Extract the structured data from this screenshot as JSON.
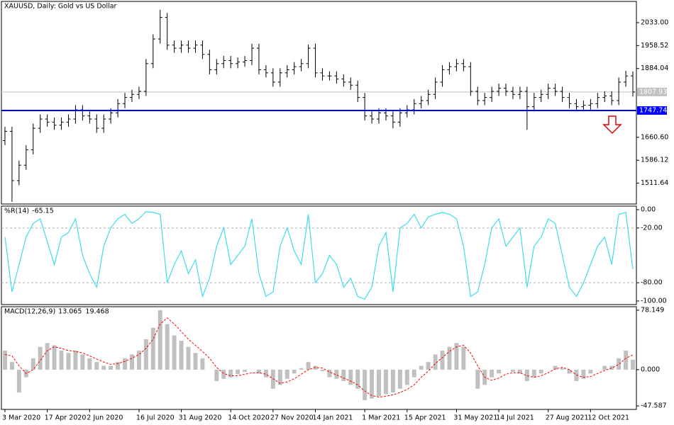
{
  "chart_data": [
    {
      "type": "candlestick",
      "title": "XAUUSD, Daily:  Gold vs US Dollar",
      "categories": [
        "3 Mar 2020",
        null,
        null,
        null,
        null,
        null,
        "17 Apr 2020",
        null,
        null,
        null,
        null,
        null,
        "2 Jun 2020",
        null,
        null,
        null,
        null,
        null,
        null,
        "16 Jul 2020",
        null,
        null,
        null,
        null,
        null,
        "31 Aug 2020",
        null,
        null,
        null,
        null,
        null,
        null,
        "14 Oct 2020",
        null,
        null,
        null,
        null,
        null,
        "27 Nov 2020",
        null,
        null,
        null,
        null,
        null,
        "14 Jan 2021",
        null,
        null,
        null,
        null,
        null,
        null,
        "1 Mar 2021",
        null,
        null,
        null,
        null,
        null,
        "15 Apr 2021",
        null,
        null,
        null,
        null,
        null,
        null,
        "31 May 2021",
        null,
        null,
        null,
        null,
        null,
        "14 Jul 2021",
        null,
        null,
        null,
        null,
        null,
        null,
        "27 Aug 2021",
        null,
        null,
        null,
        null,
        null,
        "12 Oct 2021",
        null,
        null,
        null,
        null,
        null,
        null
      ],
      "open": [
        1650,
        1680,
        1520,
        1570,
        1620,
        1690,
        1720,
        1710,
        1700,
        1710,
        1720,
        1750,
        1730,
        1720,
        1690,
        1720,
        1740,
        1770,
        1790,
        1800,
        1810,
        1900,
        1980,
        2050,
        1960,
        1950,
        1960,
        1950,
        1960,
        1930,
        1880,
        1900,
        1910,
        1900,
        1905,
        1910,
        1950,
        1880,
        1870,
        1840,
        1870,
        1880,
        1890,
        1900,
        1950,
        1870,
        1860,
        1860,
        1850,
        1840,
        1830,
        1790,
        1730,
        1720,
        1740,
        1730,
        1710,
        1740,
        1750,
        1770,
        1780,
        1800,
        1840,
        1880,
        1890,
        1900,
        1890,
        1810,
        1780,
        1790,
        1810,
        1820,
        1810,
        1800,
        1810,
        1760,
        1790,
        1800,
        1820,
        1810,
        1790,
        1770,
        1760,
        1765,
        1770,
        1790,
        1795,
        1780,
        1840,
        1860
      ],
      "high": [
        1695,
        1695,
        1585,
        1635,
        1705,
        1735,
        1735,
        1725,
        1725,
        1735,
        1765,
        1765,
        1745,
        1735,
        1735,
        1755,
        1785,
        1805,
        1815,
        1825,
        1915,
        1995,
        2075,
        2065,
        1975,
        1975,
        1975,
        1975,
        1975,
        1945,
        1915,
        1925,
        1925,
        1920,
        1925,
        1965,
        1965,
        1895,
        1885,
        1885,
        1895,
        1905,
        1915,
        1962,
        1965,
        1885,
        1875,
        1875,
        1865,
        1855,
        1845,
        1805,
        1745,
        1755,
        1755,
        1745,
        1755,
        1765,
        1785,
        1795,
        1815,
        1855,
        1895,
        1905,
        1915,
        1915,
        1905,
        1825,
        1805,
        1825,
        1835,
        1835,
        1825,
        1825,
        1825,
        1805,
        1815,
        1835,
        1835,
        1825,
        1805,
        1785,
        1780,
        1785,
        1805,
        1810,
        1810,
        1855,
        1877,
        1875
      ],
      "low": [
        1635,
        1451,
        1505,
        1555,
        1605,
        1675,
        1695,
        1685,
        1685,
        1695,
        1705,
        1715,
        1705,
        1675,
        1675,
        1705,
        1725,
        1755,
        1775,
        1785,
        1795,
        1885,
        1965,
        1945,
        1935,
        1935,
        1935,
        1935,
        1915,
        1865,
        1865,
        1885,
        1885,
        1885,
        1890,
        1895,
        1865,
        1855,
        1825,
        1825,
        1855,
        1865,
        1875,
        1885,
        1855,
        1845,
        1845,
        1835,
        1825,
        1815,
        1775,
        1715,
        1705,
        1705,
        1715,
        1690,
        1695,
        1725,
        1735,
        1755,
        1765,
        1785,
        1825,
        1865,
        1875,
        1875,
        1795,
        1765,
        1765,
        1775,
        1795,
        1795,
        1785,
        1785,
        1685,
        1745,
        1775,
        1785,
        1795,
        1775,
        1755,
        1745,
        1745,
        1750,
        1755,
        1775,
        1765,
        1765,
        1825,
        1793
      ],
      "close": [
        1680,
        1520,
        1570,
        1620,
        1690,
        1720,
        1710,
        1700,
        1710,
        1720,
        1750,
        1730,
        1720,
        1690,
        1720,
        1740,
        1770,
        1790,
        1800,
        1810,
        1900,
        1980,
        2050,
        1960,
        1950,
        1960,
        1950,
        1960,
        1930,
        1880,
        1900,
        1910,
        1900,
        1905,
        1910,
        1950,
        1880,
        1870,
        1840,
        1870,
        1880,
        1890,
        1900,
        1950,
        1870,
        1860,
        1860,
        1850,
        1840,
        1830,
        1790,
        1730,
        1720,
        1740,
        1730,
        1710,
        1740,
        1750,
        1770,
        1780,
        1800,
        1840,
        1880,
        1890,
        1900,
        1890,
        1810,
        1780,
        1790,
        1810,
        1820,
        1810,
        1800,
        1810,
        1760,
        1790,
        1800,
        1820,
        1810,
        1790,
        1770,
        1760,
        1765,
        1770,
        1790,
        1795,
        1780,
        1840,
        1860,
        1807.93
      ],
      "color": "#000000",
      "last_price_color": "#c0c0c0",
      "hline": {
        "value": 1747.74,
        "color": "#0000ff"
      },
      "ylim": [
        1444,
        2102
      ],
      "yticks": [
        {
          "value": 2033,
          "label": "2033.00"
        },
        1958.52,
        1884.04,
        {
          "value": 1660.6,
          "label": "1660.60"
        },
        1586.12,
        1511.64
      ]
    },
    {
      "type": "line",
      "title": "%R(14)",
      "values": [
        -30,
        -90,
        -60,
        -30,
        -15,
        -10,
        -35,
        -60,
        -30,
        -25,
        -10,
        -50,
        -70,
        -85,
        -40,
        -20,
        -10,
        -5,
        -15,
        -10,
        -2,
        -3,
        -5,
        -80,
        -60,
        -45,
        -70,
        -55,
        -95,
        -75,
        -40,
        -20,
        -60,
        -50,
        -40,
        -10,
        -70,
        -95,
        -90,
        -40,
        -20,
        -45,
        -60,
        -5,
        -80,
        -70,
        -50,
        -60,
        -85,
        -75,
        -95,
        -98,
        -85,
        -40,
        -25,
        -90,
        -20,
        -15,
        -5,
        -20,
        -8,
        -5,
        -3,
        -5,
        -10,
        -40,
        -95,
        -90,
        -60,
        -20,
        -10,
        -40,
        -30,
        -20,
        -85,
        -40,
        -30,
        -10,
        -15,
        -50,
        -85,
        -95,
        -80,
        -60,
        -40,
        -30,
        -60,
        -5,
        -3,
        -65.15
      ],
      "color": "#3fdcec",
      "levels": [
        -20,
        -80
      ],
      "ylim": [
        -103.9,
        3.9
      ],
      "yticks": [
        {
          "value": 0,
          "label": "0.00"
        },
        {
          "value": -20,
          "label": "-20.00"
        },
        {
          "value": -80,
          "label": "-80.00"
        },
        {
          "value": -100,
          "label": "-100.00"
        }
      ]
    },
    {
      "type": "macd",
      "title": "MACD(12,26,9)",
      "series": [
        {
          "color": "#c0c0c0",
          "style": "histogram",
          "values": [
            25,
            10,
            -30,
            -10,
            15,
            30,
            35,
            32,
            25,
            22,
            25,
            20,
            15,
            10,
            5,
            5,
            10,
            15,
            20,
            25,
            40,
            55,
            78,
            60,
            45,
            38,
            30,
            22,
            15,
            0,
            -15,
            -12,
            -10,
            -6,
            -3,
            0,
            -5,
            -10,
            -25,
            -20,
            -12,
            -5,
            2,
            10,
            5,
            -2,
            -10,
            -12,
            -15,
            -20,
            -25,
            -40,
            -38,
            -35,
            -32,
            -30,
            -25,
            -20,
            -10,
            5,
            10,
            20,
            25,
            30,
            35,
            30,
            0,
            -25,
            -20,
            -10,
            -5,
            0,
            -3,
            -5,
            -15,
            -10,
            -5,
            0,
            5,
            2,
            -5,
            -15,
            -12,
            -5,
            0,
            5,
            5,
            15,
            25,
            13.065
          ]
        },
        {
          "color": "#ff0000",
          "style": "dashed",
          "values": [
            20,
            18,
            5,
            -5,
            0,
            12,
            25,
            30,
            28,
            25,
            24,
            22,
            18,
            14,
            10,
            7,
            8,
            11,
            15,
            20,
            28,
            40,
            60,
            68,
            60,
            50,
            40,
            32,
            24,
            15,
            3,
            -5,
            -8,
            -8,
            -6,
            -4,
            -4,
            -6,
            -12,
            -18,
            -16,
            -12,
            -6,
            0,
            3,
            2,
            -3,
            -7,
            -11,
            -15,
            -20,
            -28,
            -34,
            -36,
            -35,
            -33,
            -30,
            -26,
            -20,
            -10,
            -2,
            8,
            16,
            24,
            30,
            32,
            22,
            5,
            -10,
            -14,
            -11,
            -6,
            -4,
            -4,
            -8,
            -10,
            -8,
            -4,
            1,
            3,
            0,
            -7,
            -10,
            -9,
            -5,
            -1,
            2,
            7,
            15,
            19.468
          ]
        }
      ],
      "ylim": [
        -52.2,
        82.7
      ],
      "yticks": [
        78.149,
        {
          "value": 0,
          "label": "0.000"
        },
        -47.587
      ]
    }
  ]
}
